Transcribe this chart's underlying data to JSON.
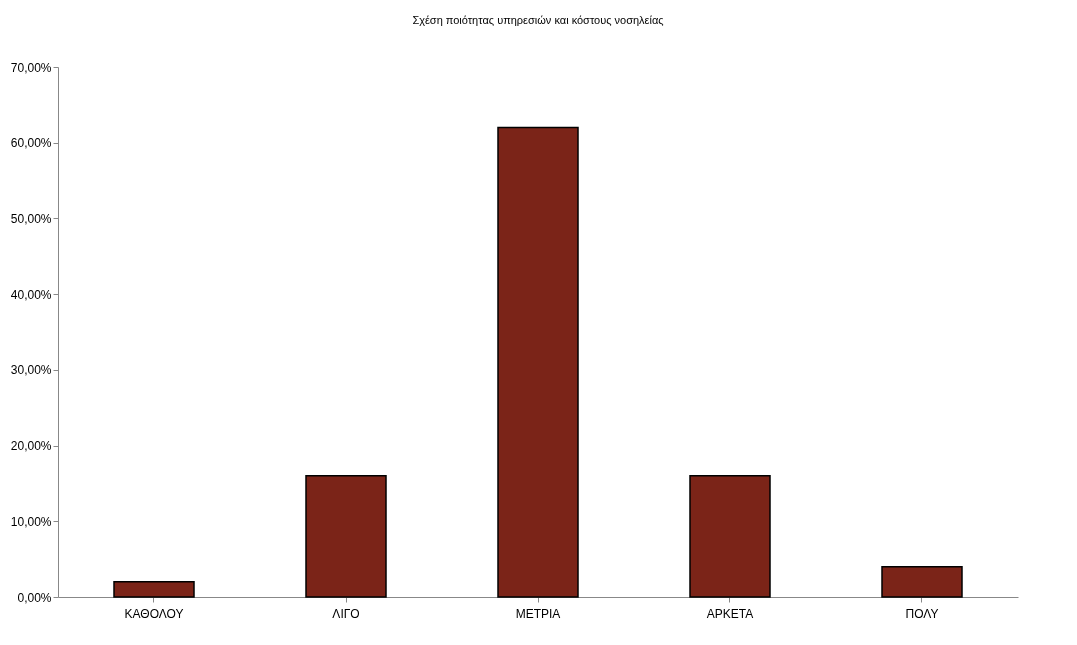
{
  "chart_data": {
    "type": "bar",
    "title": "Σχέση ποιότητας υπηρεσιών και κόστους νοσηλείας",
    "categories": [
      "ΚΑΘΟΛΟΥ",
      "ΛΙΓΟ",
      "ΜΕΤΡΙΑ",
      "ΑΡΚΕΤΑ",
      "ΠΟΛΥ"
    ],
    "values": [
      2,
      16,
      62,
      16,
      4
    ],
    "color": "#7b2418",
    "ylim": [
      0,
      70
    ],
    "yticks": [
      {
        "value": 0,
        "label": "0,00%"
      },
      {
        "value": 10,
        "label": "10,00%"
      },
      {
        "value": 20,
        "label": "20,00%"
      },
      {
        "value": 30,
        "label": "30,00%"
      },
      {
        "value": 40,
        "label": "40,00%"
      },
      {
        "value": 50,
        "label": "50,00%"
      },
      {
        "value": 60,
        "label": "60,00%"
      },
      {
        "value": 70,
        "label": "70,00%"
      }
    ],
    "grid": false
  }
}
